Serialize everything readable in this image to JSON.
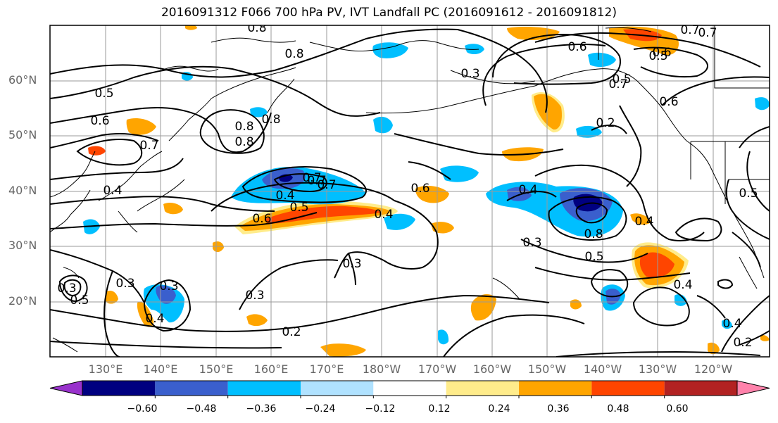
{
  "title": "2016091312 F066 700 hPa PV, IVT Landfall PC (2016091612 - 2016091812)",
  "latitude_labels": [
    "60°N",
    "50°N",
    "40°N",
    "30°N",
    "20°N"
  ],
  "longitude_labels": [
    "130°E",
    "140°E",
    "150°E",
    "160°E",
    "170°E",
    "180°W",
    "170°W",
    "160°W",
    "150°W",
    "140°W",
    "130°W",
    "120°W"
  ],
  "colorbar": {
    "tick_labels": [
      "−0.60",
      "−0.48",
      "−0.36",
      "−0.24",
      "−0.12",
      "0.12",
      "0.24",
      "0.36",
      "0.48",
      "0.60"
    ],
    "colors": [
      "#9932CC",
      "#000080",
      "#3A5FCD",
      "#00BFFF",
      "#B0E2FF",
      "#FFFFFF",
      "#FFEC8B",
      "#FFA500",
      "#FF4500",
      "#B22222",
      "#FF82AB"
    ],
    "extend": "both"
  },
  "contour_labels": [
    "0.8",
    "0.8",
    "0.7",
    "0.6",
    "0.5",
    "0.6",
    "0.5",
    "0.7",
    "0.4",
    "0.8",
    "0.8",
    "0.7",
    "0.6",
    "0.5",
    "0.4",
    "0.6",
    "0.7",
    "0.3",
    "0.4",
    "0.3",
    "0.2",
    "0.4",
    "0.8",
    "0.6",
    "0.6",
    "0.7",
    "0.5",
    "0.4",
    "0.5",
    "0.4",
    "0.3",
    "0.2",
    "0.3",
    "0.5",
    "0.3",
    "0.3",
    "0.2",
    "0.4",
    "0.3",
    "0.7",
    "0.5",
    "0.4",
    "0.7",
    "0.8"
  ],
  "colors": {
    "coast": "#000000",
    "grid": "#9a9a9a",
    "contour": "#000000"
  }
}
